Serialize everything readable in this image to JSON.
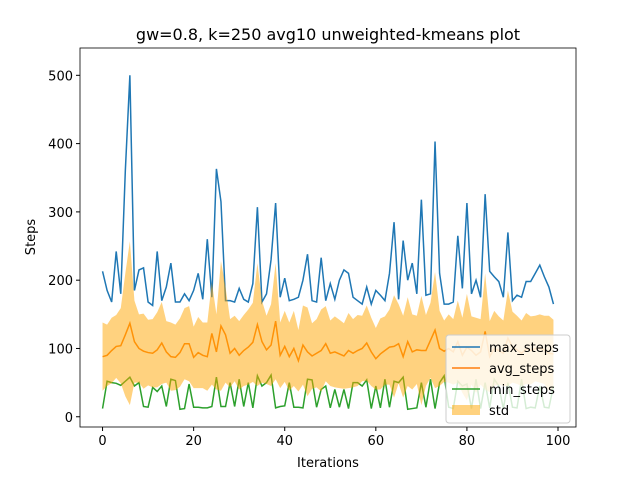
{
  "chart_data": {
    "type": "line",
    "title": "gw=0.8, k=250 avg10 unweighted-kmeans plot",
    "xlabel": "Iterations",
    "ylabel": "Steps",
    "x": [
      0,
      1,
      2,
      3,
      4,
      5,
      6,
      7,
      8,
      9,
      10,
      11,
      12,
      13,
      14,
      15,
      16,
      17,
      18,
      19,
      20,
      21,
      22,
      23,
      24,
      25,
      26,
      27,
      28,
      29,
      30,
      31,
      32,
      33,
      34,
      35,
      36,
      37,
      38,
      39,
      40,
      41,
      42,
      43,
      44,
      45,
      46,
      47,
      48,
      49,
      50,
      51,
      52,
      53,
      54,
      55,
      56,
      57,
      58,
      59,
      60,
      61,
      62,
      63,
      64,
      65,
      66,
      67,
      68,
      69,
      70,
      71,
      72,
      73,
      74,
      75,
      76,
      77,
      78,
      79,
      80,
      81,
      82,
      83,
      84,
      85,
      86,
      87,
      88,
      89,
      90,
      91,
      92,
      93,
      94,
      95,
      96,
      97,
      98,
      99
    ],
    "xlim": [
      -4.95,
      103.95
    ],
    "xticks": [
      0,
      20,
      40,
      60,
      80,
      100
    ],
    "ylim": [
      -15,
      540
    ],
    "yticks": [
      0,
      100,
      200,
      300,
      400,
      500
    ],
    "legend": "lower right",
    "series": [
      {
        "name": "max_steps",
        "color": "#1f77b4",
        "values": [
          213,
          185,
          168,
          242,
          180,
          360,
          500,
          185,
          215,
          218,
          168,
          163,
          242,
          170,
          190,
          225,
          168,
          168,
          180,
          170,
          185,
          210,
          172,
          260,
          175,
          363,
          315,
          170,
          170,
          168,
          188,
          172,
          168,
          195,
          307,
          168,
          180,
          230,
          313,
          175,
          203,
          170,
          172,
          175,
          200,
          238,
          170,
          168,
          233,
          170,
          195,
          172,
          200,
          215,
          210,
          175,
          170,
          165,
          190,
          165,
          185,
          178,
          170,
          210,
          285,
          172,
          258,
          200,
          225,
          180,
          318,
          178,
          180,
          403,
          210,
          165,
          165,
          168,
          265,
          188,
          313,
          180,
          200,
          175,
          326,
          213,
          205,
          198,
          175,
          270,
          170,
          178,
          175,
          198,
          198,
          210,
          222,
          205,
          190,
          165
        ]
      },
      {
        "name": "avg_steps",
        "color": "#ff7f0e",
        "values": [
          88,
          90,
          97,
          103,
          104,
          120,
          137,
          110,
          100,
          96,
          94,
          93,
          98,
          108,
          95,
          88,
          87,
          94,
          107,
          107,
          87,
          94,
          90,
          88,
          122,
          95,
          133,
          120,
          93,
          100,
          90,
          97,
          102,
          109,
          135,
          110,
          98,
          105,
          140,
          90,
          103,
          88,
          100,
          82,
          105,
          95,
          89,
          93,
          97,
          107,
          93,
          95,
          92,
          89,
          97,
          93,
          97,
          100,
          108,
          95,
          85,
          92,
          97,
          102,
          103,
          107,
          88,
          110,
          95,
          98,
          97,
          97,
          112,
          127,
          100,
          96,
          100,
          95,
          110,
          90,
          102,
          97,
          90,
          95,
          125,
          88,
          100,
          97,
          93,
          115,
          102,
          98,
          93,
          100,
          97,
          100,
          100,
          98,
          93,
          92
        ]
      },
      {
        "name": "min_steps",
        "color": "#2ca02c",
        "values": [
          12,
          52,
          50,
          49,
          46,
          52,
          58,
          45,
          50,
          15,
          14,
          43,
          37,
          45,
          15,
          55,
          53,
          11,
          12,
          48,
          14,
          14,
          13,
          13,
          15,
          58,
          15,
          15,
          50,
          15,
          55,
          15,
          50,
          13,
          60,
          45,
          50,
          61,
          13,
          15,
          16,
          50,
          14,
          14,
          13,
          55,
          54,
          14,
          40,
          45,
          13,
          40,
          14,
          40,
          12,
          50,
          50,
          45,
          54,
          12,
          45,
          13,
          55,
          14,
          52,
          50,
          58,
          11,
          12,
          13,
          50,
          14,
          55,
          12,
          50,
          60,
          14,
          12,
          52,
          45,
          48,
          12,
          55,
          12,
          50,
          13,
          55,
          45,
          12,
          50,
          14,
          13,
          55,
          12,
          14,
          13,
          45,
          14,
          13,
          45
        ]
      },
      {
        "name": "std",
        "color": "#ffa500",
        "band_of": "avg_steps",
        "values": [
          50,
          45,
          48,
          46,
          55,
          90,
          120,
          60,
          50,
          55,
          48,
          50,
          55,
          60,
          45,
          50,
          48,
          50,
          52,
          55,
          45,
          52,
          48,
          50,
          75,
          55,
          95,
          70,
          50,
          48,
          50,
          52,
          55,
          58,
          90,
          60,
          50,
          60,
          85,
          48,
          52,
          50,
          55,
          45,
          58,
          65,
          48,
          50,
          60,
          55,
          48,
          52,
          50,
          48,
          55,
          50,
          52,
          48,
          55,
          50,
          45,
          52,
          50,
          55,
          75,
          58,
          60,
          65,
          55,
          50,
          80,
          52,
          55,
          85,
          55,
          45,
          50,
          48,
          60,
          55,
          78,
          50,
          55,
          48,
          85,
          52,
          55,
          50,
          48,
          70,
          52,
          50,
          48,
          52,
          50,
          48,
          50,
          50,
          55,
          50
        ]
      }
    ]
  }
}
